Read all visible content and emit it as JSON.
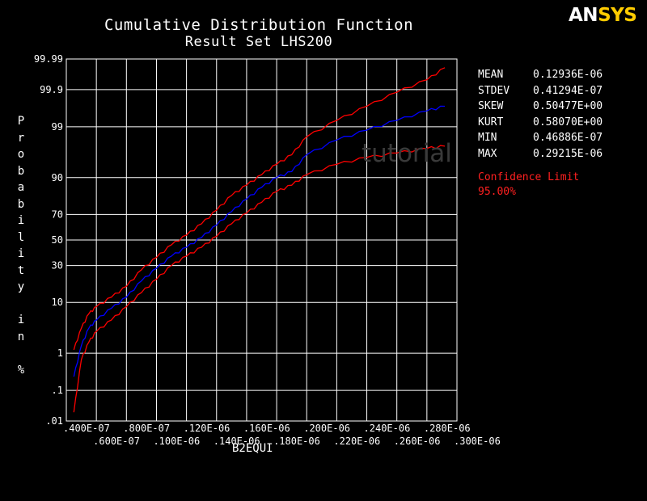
{
  "logo": {
    "part1": "AN",
    "part2": "SYS"
  },
  "watermark": "tutorial",
  "chart_data": {
    "type": "line",
    "title": "Cumulative Distribution Function",
    "subtitle": "Result Set LHS200",
    "xlabel": "B2EQUI",
    "ylabel": "Probability in %",
    "xlim": [
      4e-08,
      3e-07
    ],
    "x_ticks": [
      4e-08,
      6e-08,
      8e-08,
      1e-07,
      1.2e-07,
      1.4e-07,
      1.6e-07,
      1.8e-07,
      2e-07,
      2.2e-07,
      2.4e-07,
      2.6e-07,
      2.8e-07,
      3e-07
    ],
    "x_tick_labels_top": [
      ".400E-07",
      ".800E-07",
      ".120E-06",
      ".160E-06",
      ".200E-06",
      ".240E-06",
      ".280E-06"
    ],
    "x_tick_labels_bottom": [
      ".600E-07",
      ".100E-06",
      ".140E-06",
      ".180E-06",
      ".220E-06",
      ".260E-06",
      ".300E-06"
    ],
    "y_scale": "probability",
    "y_ticks": [
      0.01,
      0.1,
      1,
      10,
      30,
      50,
      70,
      90,
      99,
      99.9,
      99.99
    ],
    "y_tick_labels": [
      ".01",
      ".1",
      "1",
      "10",
      "30",
      "50",
      "70",
      "90",
      "99",
      "99.9",
      "99.99"
    ],
    "grid": true,
    "series": [
      {
        "color": "#0000ff",
        "x": [
          4.5e-08,
          5e-08,
          5.5e-08,
          6e-08,
          7e-08,
          8e-08,
          9e-08,
          1e-07,
          1.1e-07,
          1.2e-07,
          1.3e-07,
          1.4e-07,
          1.5e-07,
          1.6e-07,
          1.7e-07,
          1.8e-07,
          1.9e-07,
          2e-07,
          2.2e-07,
          2.4e-07,
          2.6e-07,
          2.8e-07,
          2.92e-07
        ],
        "y": [
          0.25,
          1.5,
          3.5,
          5,
          8,
          12,
          20,
          28,
          37,
          44,
          52,
          62,
          72,
          80,
          86,
          90,
          92,
          96,
          98,
          98.8,
          99.3,
          99.6,
          99.7
        ]
      },
      {
        "color": "#ff0000",
        "x": [
          4.5e-08,
          5e-08,
          5.5e-08,
          6e-08,
          7e-08,
          8e-08,
          9e-08,
          1e-07,
          1.1e-07,
          1.2e-07,
          1.3e-07,
          1.4e-07,
          1.5e-07,
          1.6e-07,
          1.7e-07,
          1.8e-07,
          1.9e-07,
          2e-07,
          2.2e-07,
          2.4e-07,
          2.6e-07,
          2.8e-07,
          2.92e-07
        ],
        "y": [
          1.2,
          3.5,
          6.5,
          8.5,
          12,
          17,
          27,
          36,
          46,
          54,
          63,
          73,
          82,
          87,
          91,
          94,
          96,
          98.3,
          99.3,
          99.7,
          99.88,
          99.95,
          99.98
        ]
      },
      {
        "color": "#ff0000",
        "x": [
          4.5e-08,
          5e-08,
          5.5e-08,
          6e-08,
          7e-08,
          8e-08,
          9e-08,
          1e-07,
          1.1e-07,
          1.2e-07,
          1.3e-07,
          1.4e-07,
          1.5e-07,
          1.6e-07,
          1.7e-07,
          1.8e-07,
          1.9e-07,
          2e-07,
          2.2e-07,
          2.4e-07,
          2.6e-07,
          2.8e-07,
          2.92e-07
        ],
        "y": [
          0.02,
          0.7,
          1.8,
          3,
          5,
          8.5,
          14,
          21,
          30,
          37,
          44,
          53,
          63,
          71,
          78,
          84,
          87,
          91,
          94,
          95.5,
          96.3,
          97,
          97.3
        ]
      }
    ]
  },
  "stats": [
    {
      "label": "MEAN",
      "value": "0.12936E-06"
    },
    {
      "label": "STDEV",
      "value": "0.41294E-07"
    },
    {
      "label": "SKEW",
      "value": "0.50477E+00"
    },
    {
      "label": "KURT",
      "value": "0.58070E+00"
    },
    {
      "label": "MIN",
      "value": "0.46886E-07"
    },
    {
      "label": "MAX",
      "value": "0.29215E-06"
    }
  ],
  "confidence": {
    "label": "Confidence Limit",
    "value": "95.00%"
  }
}
